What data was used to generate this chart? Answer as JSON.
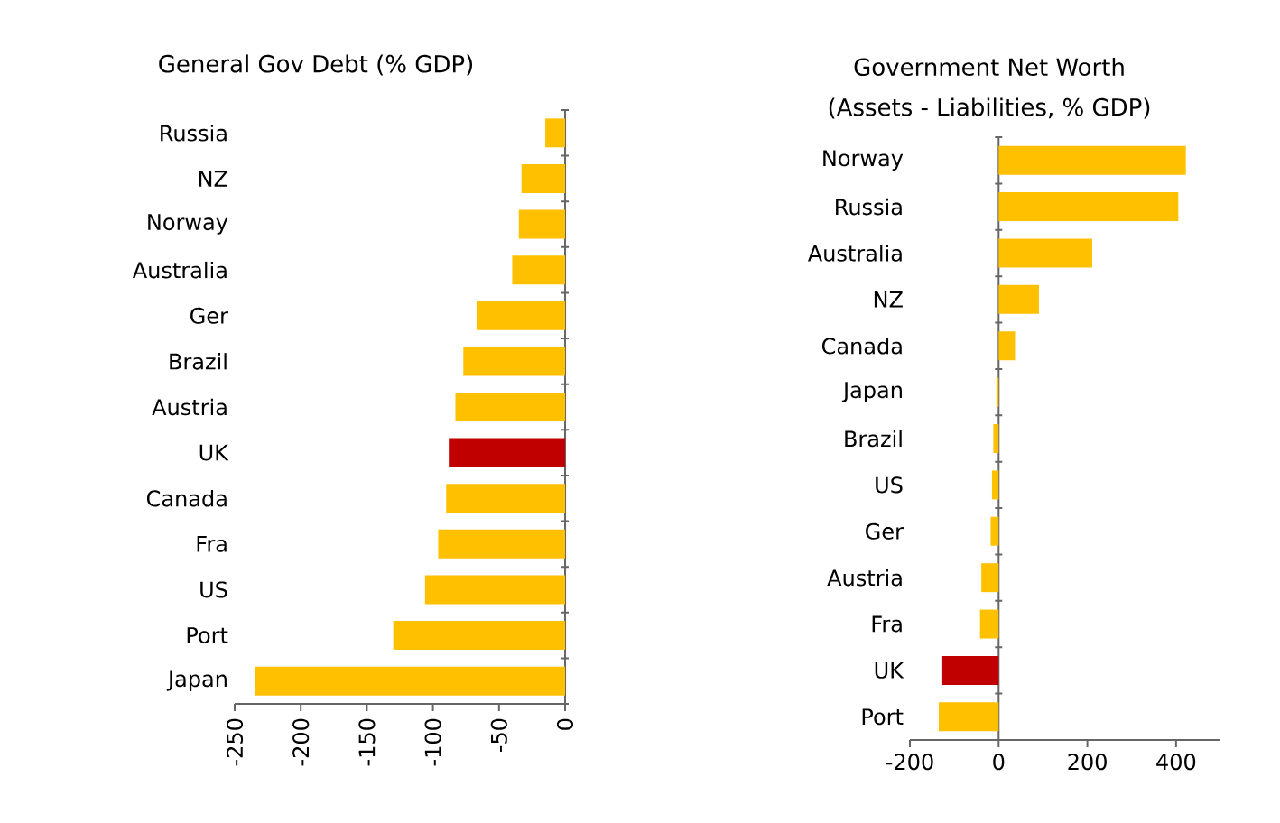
{
  "chart_data": [
    {
      "type": "bar",
      "orientation": "horizontal",
      "title": "General Gov Debt (% GDP)",
      "categories": [
        "Russia",
        "NZ",
        "Norway",
        "Australia",
        "Ger",
        "Brazil",
        "Austria",
        "UK",
        "Canada",
        "Fra",
        "US",
        "Port",
        "Japan"
      ],
      "values": [
        -15,
        -33,
        -35,
        -40,
        -67,
        -77,
        -83,
        -88,
        -90,
        -96,
        -106,
        -130,
        -235
      ],
      "colors": [
        "#ffc000",
        "#ffc000",
        "#ffc000",
        "#ffc000",
        "#ffc000",
        "#ffc000",
        "#ffc000",
        "#c00000",
        "#ffc000",
        "#ffc000",
        "#ffc000",
        "#ffc000",
        "#ffc000"
      ],
      "xlim": [
        -250,
        0
      ],
      "xticks": [
        -250,
        -200,
        -150,
        -100,
        -50,
        0
      ]
    },
    {
      "type": "bar",
      "orientation": "horizontal",
      "title": "Government Net Worth",
      "subtitle": "(Assets - Liabilities, % GDP)",
      "categories": [
        "Norway",
        "Russia",
        "Australia",
        "NZ",
        "Canada",
        "Japan",
        "Brazil",
        "US",
        "Ger",
        "Austria",
        "Fra",
        "UK",
        "Port"
      ],
      "values": [
        422,
        405,
        211,
        91,
        37,
        -5,
        -12,
        -15,
        -18,
        -39,
        -42,
        -127,
        -135
      ],
      "colors": [
        "#ffc000",
        "#ffc000",
        "#ffc000",
        "#ffc000",
        "#ffc000",
        "#ffc000",
        "#ffc000",
        "#ffc000",
        "#ffc000",
        "#ffc000",
        "#ffc000",
        "#c00000",
        "#ffc000"
      ],
      "xlim": [
        -200,
        500
      ],
      "xticks": [
        -200,
        0,
        200,
        400
      ]
    }
  ]
}
